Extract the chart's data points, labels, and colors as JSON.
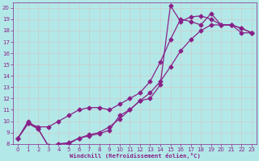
{
  "background_color": "#b3e8e8",
  "line_color": "#882288",
  "grid_color": "#cccccc",
  "xlabel": "Windchill (Refroidissement éolien,°C)",
  "xlabel_color": "#882288",
  "tick_color": "#882288",
  "xlim": [
    -0.5,
    23.5
  ],
  "ylim": [
    8,
    20.5
  ],
  "yticks": [
    8,
    9,
    10,
    11,
    12,
    13,
    14,
    15,
    16,
    17,
    18,
    19,
    20
  ],
  "xticks": [
    0,
    1,
    2,
    3,
    4,
    5,
    6,
    7,
    8,
    9,
    10,
    11,
    12,
    13,
    14,
    15,
    16,
    17,
    18,
    19,
    20,
    21,
    22,
    23
  ],
  "line1_x": [
    0,
    1,
    2,
    3,
    4,
    5,
    6,
    7,
    8,
    9,
    10,
    11,
    12,
    13,
    14,
    15,
    16,
    17,
    18,
    19,
    20,
    21,
    22,
    23
  ],
  "line1_y": [
    8.5,
    10.0,
    9.3,
    7.8,
    8.0,
    8.0,
    8.5,
    8.7,
    8.9,
    9.2,
    10.5,
    11.0,
    11.8,
    12.0,
    13.2,
    20.2,
    18.8,
    19.2,
    19.3,
    19.0,
    18.5,
    18.5,
    17.8,
    17.8
  ],
  "line2_x": [
    0,
    1,
    2,
    3,
    4,
    5,
    6,
    7,
    8,
    9,
    10,
    11,
    12,
    13,
    14,
    15,
    16,
    17,
    18,
    19,
    20,
    21,
    22,
    23
  ],
  "line2_y": [
    8.5,
    9.8,
    9.3,
    7.8,
    8.0,
    8.1,
    8.5,
    8.8,
    9.0,
    9.5,
    10.2,
    11.0,
    11.8,
    12.5,
    13.5,
    14.8,
    16.2,
    17.2,
    18.0,
    18.5,
    18.5,
    18.5,
    18.2,
    17.8
  ],
  "line3_x": [
    0,
    1,
    2,
    3,
    4,
    5,
    6,
    7,
    8,
    9,
    10,
    11,
    12,
    13,
    14,
    15,
    16,
    17,
    18,
    19,
    20,
    21,
    22,
    23
  ],
  "line3_y": [
    8.5,
    9.8,
    9.5,
    9.5,
    10.0,
    10.5,
    11.0,
    11.2,
    11.2,
    11.0,
    11.5,
    12.0,
    12.5,
    13.5,
    15.2,
    17.2,
    19.0,
    18.8,
    18.5,
    19.5,
    18.5,
    18.5,
    18.2,
    17.8
  ]
}
